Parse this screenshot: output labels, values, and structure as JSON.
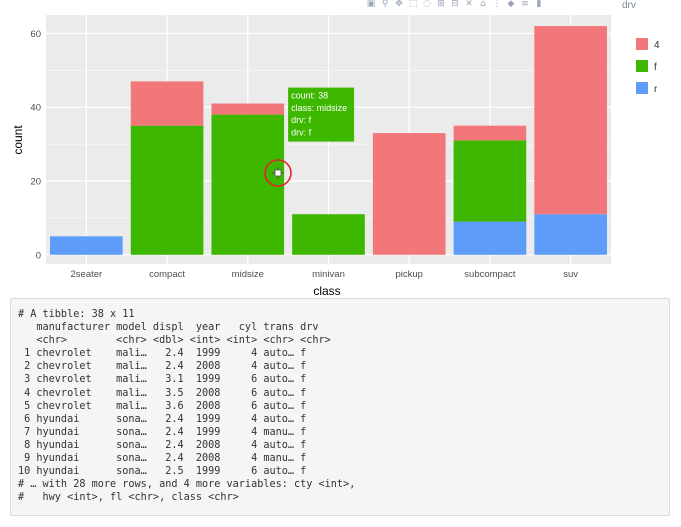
{
  "modebar": {
    "icons": [
      "camera-icon",
      "zoom-icon",
      "pan-icon",
      "box-select-icon",
      "lasso-icon",
      "zoom-in-icon",
      "zoom-out-icon",
      "autoscale-icon",
      "home-icon",
      "spike-lines-icon",
      "hover-closest-icon",
      "hover-compare-icon",
      "plotly-logo-icon"
    ],
    "glyphs": [
      "▣",
      "⚲",
      "✥",
      "⬚",
      "◌",
      "⊞",
      "⊟",
      "✕",
      "⌂",
      "⋮",
      "◆",
      "≡",
      "▮"
    ],
    "partial_label": "drv"
  },
  "chart_data": {
    "type": "bar",
    "stacked": true,
    "categories": [
      "2seater",
      "compact",
      "midsize",
      "minivan",
      "pickup",
      "subcompact",
      "suv"
    ],
    "series": [
      {
        "name": "4",
        "color": "#F2777A",
        "values": [
          0,
          12,
          3,
          0,
          33,
          4,
          51
        ]
      },
      {
        "name": "f",
        "color": "#3DB700",
        "values": [
          0,
          35,
          38,
          11,
          0,
          22,
          0
        ]
      },
      {
        "name": "r",
        "color": "#5E9CF9",
        "values": [
          5,
          0,
          0,
          0,
          0,
          9,
          11
        ]
      }
    ],
    "stack_order": [
      "r",
      "f",
      "4"
    ],
    "xlabel": "class",
    "ylabel": "count",
    "ylim": [
      -2.5,
      65
    ],
    "yticks": [
      0,
      20,
      40,
      60
    ],
    "grid": true,
    "legend": {
      "position": "right",
      "items": [
        "4",
        "f",
        "r"
      ]
    },
    "tooltip": {
      "category": "midsize",
      "series": "f",
      "lines": [
        "count: 38",
        "class: midsize",
        "drv: f",
        "drv: f"
      ]
    }
  },
  "console": {
    "lines": [
      "# A tibble: 38 x 11",
      "   manufacturer model displ  year   cyl trans drv",
      "   <chr>        <chr> <dbl> <int> <int> <chr> <chr>",
      " 1 chevrolet    mali…   2.4  1999     4 auto… f",
      " 2 chevrolet    mali…   2.4  2008     4 auto… f",
      " 3 chevrolet    mali…   3.1  1999     6 auto… f",
      " 4 chevrolet    mali…   3.5  2008     6 auto… f",
      " 5 chevrolet    mali…   3.6  2008     6 auto… f",
      " 6 hyundai      sona…   2.4  1999     4 auto… f",
      " 7 hyundai      sona…   2.4  1999     4 manu… f",
      " 8 hyundai      sona…   2.4  2008     4 auto… f",
      " 9 hyundai      sona…   2.4  2008     4 manu… f",
      "10 hyundai      sona…   2.5  1999     6 auto… f",
      "# … with 28 more rows, and 4 more variables: cty <int>,",
      "#   hwy <int>, fl <chr>, class <chr>"
    ]
  }
}
